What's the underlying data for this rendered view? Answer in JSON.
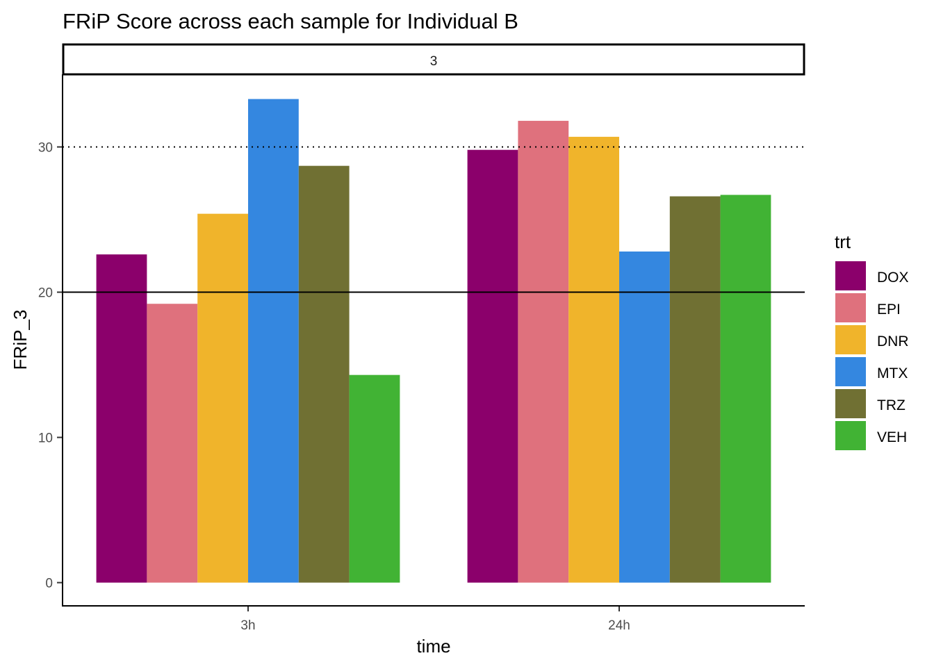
{
  "chart_data": {
    "type": "bar",
    "title": "FRiP Score across each sample for Individual B",
    "facet_label": "3",
    "xlabel": "time",
    "ylabel": "FRiP_3",
    "categories": [
      "3h",
      "24h"
    ],
    "ylim": [
      -1.6,
      35
    ],
    "yticks": [
      0,
      10,
      20,
      30
    ],
    "hlines": [
      {
        "y": 20,
        "style": "solid"
      },
      {
        "y": 30,
        "style": "dotted"
      }
    ],
    "legend": {
      "title": "trt",
      "position": "right"
    },
    "series": [
      {
        "name": "DOX",
        "color": "#8B006B",
        "values": [
          22.6,
          29.8
        ]
      },
      {
        "name": "EPI",
        "color": "#DF717D",
        "values": [
          19.2,
          31.8
        ]
      },
      {
        "name": "DNR",
        "color": "#F0B42B",
        "values": [
          25.4,
          30.7
        ]
      },
      {
        "name": "MTX",
        "color": "#3487E0",
        "values": [
          33.3,
          22.8
        ]
      },
      {
        "name": "TRZ",
        "color": "#707033",
        "values": [
          28.7,
          26.6
        ]
      },
      {
        "name": "VEH",
        "color": "#41B334",
        "values": [
          14.3,
          26.7
        ]
      }
    ]
  }
}
